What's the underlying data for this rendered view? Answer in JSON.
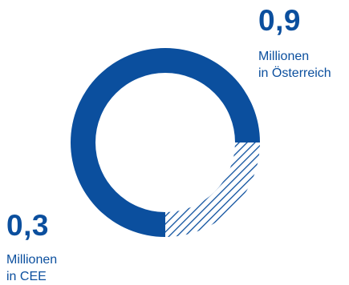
{
  "chart_data": {
    "type": "pie",
    "style": "donut",
    "categories": [
      "in Österreich",
      "in CEE"
    ],
    "values": [
      0.9,
      0.3
    ],
    "unit": "Millionen",
    "colors": [
      "#0b4f9e",
      "hatched #0b4f9e"
    ],
    "labels": [
      {
        "value": "0,9",
        "line1": "Millionen",
        "line2": "in Österreich"
      },
      {
        "value": "0,3",
        "line1": "Millionen",
        "line2": "in CEE"
      }
    ]
  }
}
